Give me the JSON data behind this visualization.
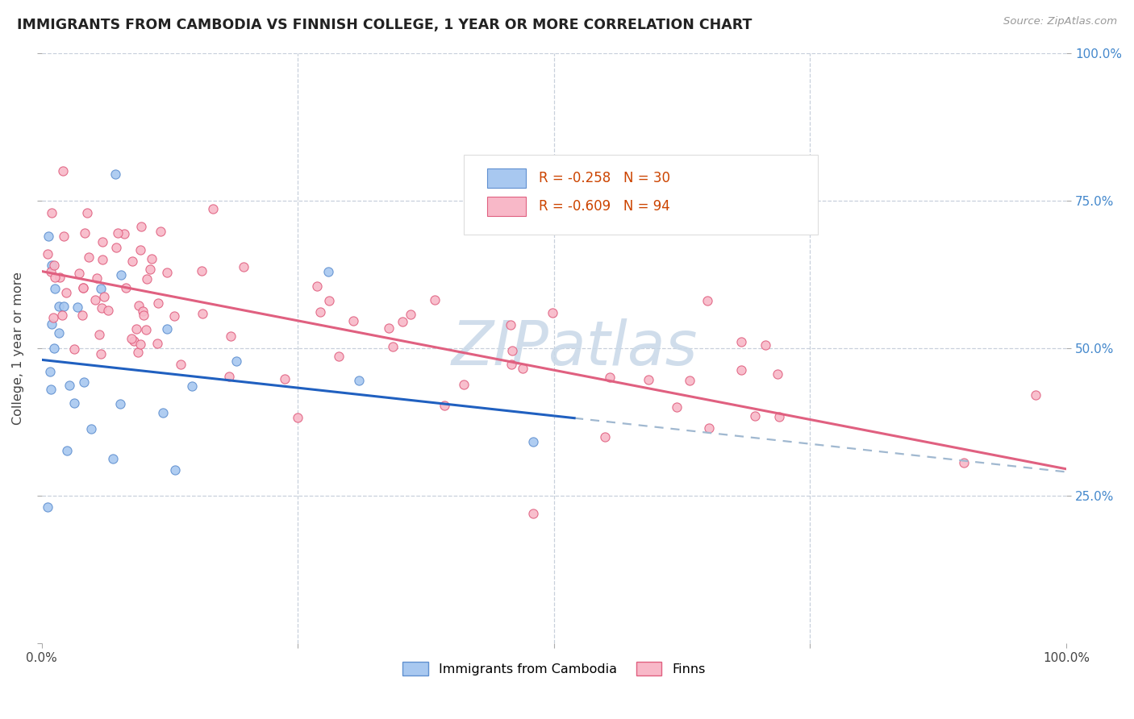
{
  "title": "IMMIGRANTS FROM CAMBODIA VS FINNISH COLLEGE, 1 YEAR OR MORE CORRELATION CHART",
  "source": "Source: ZipAtlas.com",
  "ylabel": "College, 1 year or more",
  "xlim": [
    0,
    1
  ],
  "ylim": [
    0,
    1
  ],
  "legend_label1": "Immigrants from Cambodia",
  "legend_label2": "Finns",
  "r1": "-0.258",
  "n1": "30",
  "r2": "-0.609",
  "n2": "94",
  "color_cambodia_fill": "#a8c8f0",
  "color_cambodia_edge": "#6090d0",
  "color_finns_fill": "#f8b8c8",
  "color_finns_edge": "#e06080",
  "color_line_cambodia": "#2060c0",
  "color_line_finns": "#e06080",
  "color_line_ext": "#a0b8d0",
  "watermark_color": "#c8d8e8",
  "background_color": "#ffffff",
  "grid_color": "#c8d0dc",
  "cam_intercept": 0.48,
  "cam_slope": -0.19,
  "finn_intercept": 0.63,
  "finn_slope": -0.335,
  "cam_line_end": 0.52,
  "right_tick_color": "#4488cc"
}
